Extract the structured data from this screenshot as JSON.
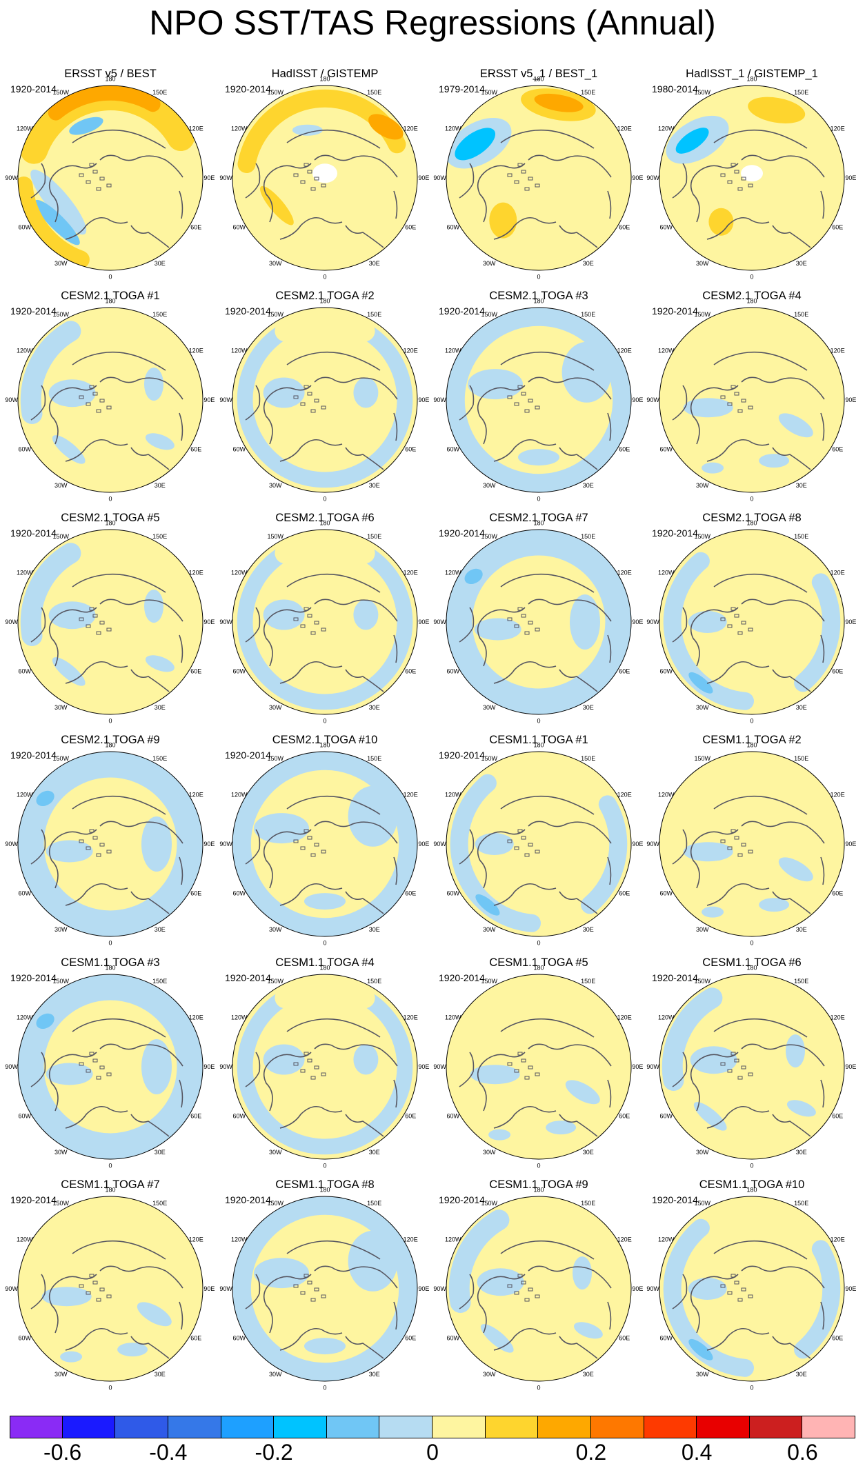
{
  "title": "NPO SST/TAS Regressions (Annual)",
  "map_labels": {
    "lon_top": "180",
    "lon_150w": "150W",
    "lon_150e": "150E",
    "lon_120w": "120W",
    "lon_120e": "120E",
    "lon_90w": "90W",
    "lon_90e": "90E",
    "lon_60w": "60W",
    "lon_60e": "60E",
    "lon_30w": "30W",
    "lon_30e": "30E",
    "lon_bottom": "0"
  },
  "colors": {
    "land_outline": "#555560",
    "ring": "#000000",
    "zero_pos": "#fef5a0",
    "zero_neg": "#b6dcf2"
  },
  "panels": [
    {
      "title": "ERSST v5 / BEST",
      "years": "1920-2014",
      "pattern": "obs1"
    },
    {
      "title": "HadISST / GISTEMP",
      "years": "1920-2014",
      "pattern": "obs2"
    },
    {
      "title": "ERSST v5_1 / BEST_1",
      "years": "1979-2014",
      "pattern": "obs3"
    },
    {
      "title": "HadISST_1 / GISTEMP_1",
      "years": "1980-2014",
      "pattern": "obs4"
    },
    {
      "title": "CESM2.1 TOGA #1",
      "years": "1920-2014",
      "pattern": "m1"
    },
    {
      "title": "CESM2.1 TOGA #2",
      "years": "1920-2014",
      "pattern": "m2"
    },
    {
      "title": "CESM2.1 TOGA #3",
      "years": "1920-2014",
      "pattern": "m3"
    },
    {
      "title": "CESM2.1 TOGA #4",
      "years": "1920-2014",
      "pattern": "m4"
    },
    {
      "title": "CESM2.1 TOGA #5",
      "years": "1920-2014",
      "pattern": "m1"
    },
    {
      "title": "CESM2.1 TOGA #6",
      "years": "",
      "pattern": "m2"
    },
    {
      "title": "CESM2.1 TOGA #7",
      "years": "1920-2014",
      "pattern": "m5"
    },
    {
      "title": "CESM2.1 TOGA #8",
      "years": "1920-2014",
      "pattern": "m6"
    },
    {
      "title": "CESM2.1 TOGA #9",
      "years": "1920-2014",
      "pattern": "m5"
    },
    {
      "title": "CESM2.1 TOGA #10",
      "years": "1920-2014",
      "pattern": "m3"
    },
    {
      "title": "CESM1.1 TOGA #1",
      "years": "1920-2014",
      "pattern": "m6"
    },
    {
      "title": "CESM1.1 TOGA #2",
      "years": "",
      "pattern": "m4"
    },
    {
      "title": "CESM1.1 TOGA #3",
      "years": "1920-2014",
      "pattern": "m5"
    },
    {
      "title": "CESM1.1 TOGA #4",
      "years": "1920-2014",
      "pattern": "m2"
    },
    {
      "title": "CESM1.1 TOGA #5",
      "years": "1920-2014",
      "pattern": "m4"
    },
    {
      "title": "CESM1.1 TOGA #6",
      "years": "1920-2014",
      "pattern": "m1"
    },
    {
      "title": "CESM1.1 TOGA #7",
      "years": "1920-2014",
      "pattern": "m4"
    },
    {
      "title": "CESM1.1 TOGA #8",
      "years": "1920-2014",
      "pattern": "m3"
    },
    {
      "title": "CESM1.1 TOGA #9",
      "years": "1920-2014",
      "pattern": "m1"
    },
    {
      "title": "CESM1.1 TOGA #10",
      "years": "1920-2014",
      "pattern": "m6"
    }
  ],
  "colorbar": {
    "colors": [
      "#8a2bf5",
      "#1a1aff",
      "#2f5ae8",
      "#3578e8",
      "#1ea0ff",
      "#00c3ff",
      "#70c6f5",
      "#b6dcf2",
      "#fef5a0",
      "#fed52e",
      "#fea800",
      "#fe7800",
      "#fe3a00",
      "#e80000",
      "#cc1f1f",
      "#ffb4b4"
    ],
    "labels": [
      "-0.6",
      "-0.4",
      "-0.2",
      "0",
      "0.2",
      "0.4",
      "0.6"
    ],
    "label_boundaries": [
      1,
      3,
      5,
      8,
      11,
      13,
      15
    ]
  }
}
